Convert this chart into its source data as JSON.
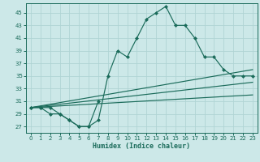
{
  "xlabel": "Humidex (Indice chaleur)",
  "background_color": "#cce8e8",
  "grid_color": "#b0d4d4",
  "line_color": "#1a6b5a",
  "xlim": [
    -0.5,
    23.5
  ],
  "ylim": [
    26.0,
    46.5
  ],
  "xticks": [
    0,
    1,
    2,
    3,
    4,
    5,
    6,
    7,
    8,
    9,
    10,
    11,
    12,
    13,
    14,
    15,
    16,
    17,
    18,
    19,
    20,
    21,
    22,
    23
  ],
  "yticks": [
    27,
    29,
    31,
    33,
    35,
    37,
    39,
    41,
    43,
    45
  ],
  "main_curve": {
    "x": [
      0,
      1,
      2,
      3,
      4,
      5,
      6,
      7,
      8,
      9,
      10,
      11,
      12,
      13,
      14,
      15,
      16,
      17,
      18,
      19,
      20,
      21,
      22,
      23
    ],
    "y": [
      30,
      30,
      30,
      29,
      28,
      27,
      27,
      28,
      35,
      39,
      38,
      41,
      44,
      45,
      46,
      43,
      43,
      41,
      38,
      38,
      36,
      35,
      35,
      35
    ]
  },
  "secondary_curve": {
    "x": [
      0,
      1,
      2,
      3,
      4,
      5,
      6,
      7
    ],
    "y": [
      30,
      30,
      29,
      29,
      28,
      27,
      27,
      31
    ]
  },
  "straight_lines": [
    {
      "x": [
        0,
        23
      ],
      "y": [
        30,
        36
      ]
    },
    {
      "x": [
        0,
        23
      ],
      "y": [
        30,
        34
      ]
    },
    {
      "x": [
        0,
        23
      ],
      "y": [
        30,
        32
      ]
    }
  ]
}
